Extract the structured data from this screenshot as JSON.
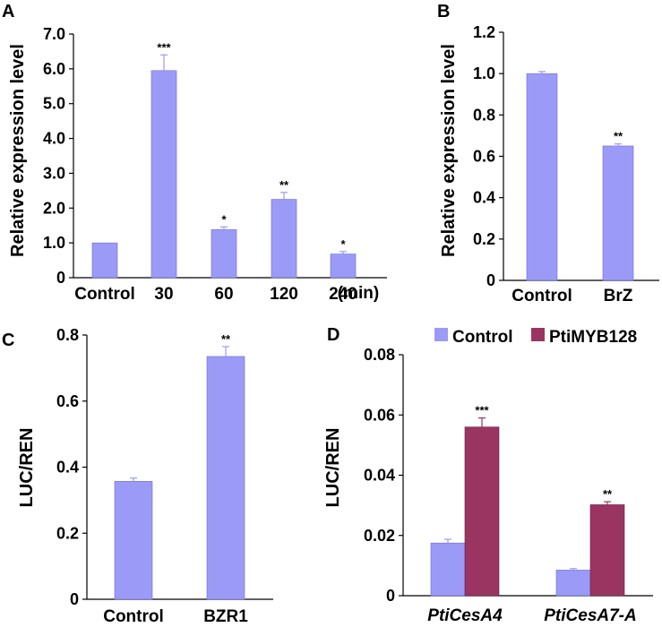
{
  "colors": {
    "control": "#9b9bf7",
    "ptimyb128": "#9a3561",
    "bar_edge": "#6b6bd6",
    "axis": "#000000"
  },
  "chart_data": [
    {
      "panel": "A",
      "type": "bar",
      "ylabel": "Relative expression level",
      "xunit": "(min)",
      "categories": [
        "Control",
        "30",
        "60",
        "120",
        "240"
      ],
      "values": [
        1.0,
        5.95,
        1.38,
        2.25,
        0.68
      ],
      "errors": [
        0.0,
        0.45,
        0.08,
        0.2,
        0.07
      ],
      "significance": [
        "",
        "***",
        "*",
        "**",
        "*"
      ],
      "ylim": [
        0,
        7.0
      ],
      "yticks": [
        "0",
        "1.0",
        "2.0",
        "3.0",
        "4.0",
        "5.0",
        "6.0",
        "7.0"
      ],
      "ytick_values": [
        0,
        1,
        2,
        3,
        4,
        5,
        6,
        7
      ]
    },
    {
      "panel": "B",
      "type": "bar",
      "ylabel": "Relative expression level",
      "categories": [
        "Control",
        "BrZ"
      ],
      "values": [
        1.0,
        0.65
      ],
      "errors": [
        0.01,
        0.01
      ],
      "significance": [
        "",
        "**"
      ],
      "ylim": [
        0,
        1.2
      ],
      "yticks": [
        "0",
        "0.2",
        "0.4",
        "0.6",
        "0.8",
        "1.0",
        "1.2"
      ],
      "ytick_values": [
        0,
        0.2,
        0.4,
        0.6,
        0.8,
        1.0,
        1.2
      ]
    },
    {
      "panel": "C",
      "type": "bar",
      "ylabel": "LUC/REN",
      "categories": [
        "Control",
        "BZR1"
      ],
      "values": [
        0.357,
        0.735
      ],
      "errors": [
        0.01,
        0.03
      ],
      "significance": [
        "",
        "**"
      ],
      "ylim": [
        0,
        0.8
      ],
      "yticks": [
        "0",
        "0.2",
        "0.4",
        "0.6",
        "0.8"
      ],
      "ytick_values": [
        0,
        0.2,
        0.4,
        0.6,
        0.8
      ]
    },
    {
      "panel": "D",
      "type": "bar",
      "ylabel": "LUC/REN",
      "categories": [
        "PtiCesA4",
        "PtiCesA7-A"
      ],
      "series": [
        {
          "name": "Control",
          "values": [
            0.0175,
            0.0085
          ],
          "errors": [
            0.0012,
            0.0005
          ],
          "significance": [
            "",
            ""
          ]
        },
        {
          "name": "PtiMYB128",
          "values": [
            0.056,
            0.0302
          ],
          "errors": [
            0.003,
            0.001
          ],
          "significance": [
            "***",
            "**"
          ]
        }
      ],
      "legend_position": "top-right",
      "ylim": [
        0,
        0.08
      ],
      "yticks": [
        "0",
        "0.02",
        "0.04",
        "0.06",
        "0.08"
      ],
      "ytick_values": [
        0,
        0.02,
        0.04,
        0.06,
        0.08
      ]
    }
  ]
}
